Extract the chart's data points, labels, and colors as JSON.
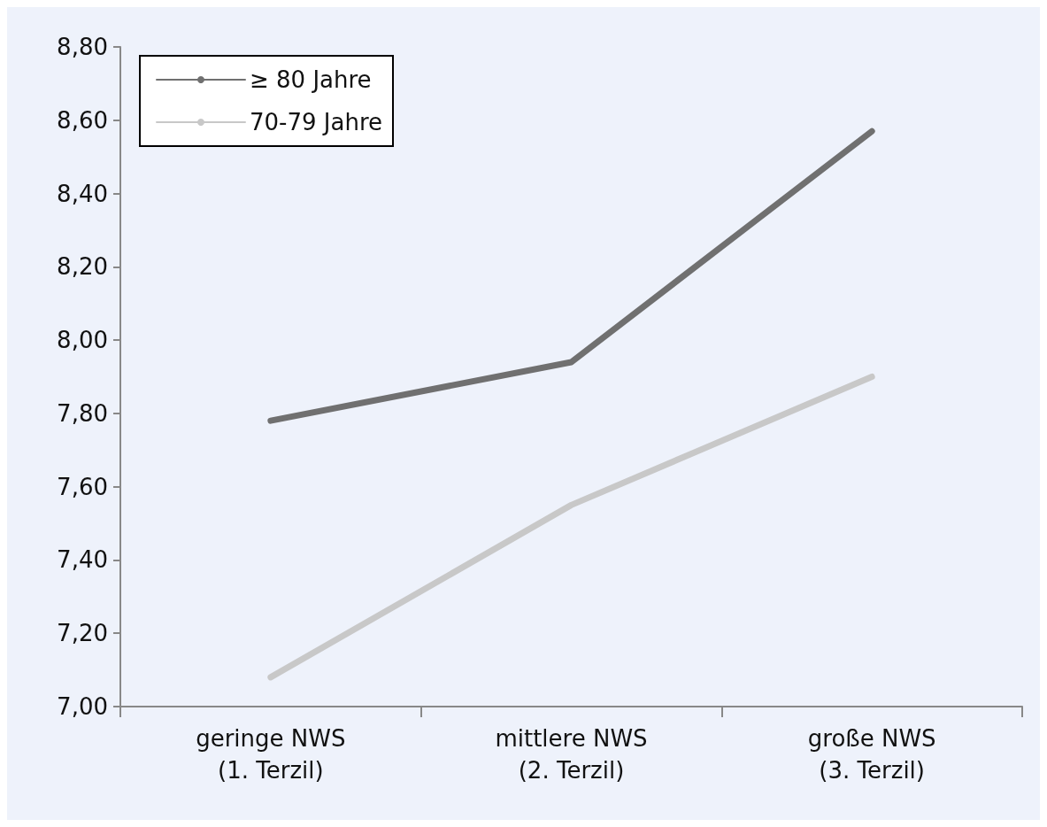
{
  "chart_data": {
    "type": "line",
    "categories": [
      "geringe NWS\n(1. Terzil)",
      "mittlere NWS\n(2. Terzil)",
      "große NWS\n(3. Terzil)"
    ],
    "series": [
      {
        "name": "≥ 80 Jahre",
        "color": "#707070",
        "values": [
          7.78,
          7.94,
          8.57
        ]
      },
      {
        "name": "70-79 Jahre",
        "color": "#c8c8c8",
        "values": [
          7.08,
          7.55,
          7.9
        ]
      }
    ],
    "ylim": [
      7.0,
      8.8
    ],
    "yticks": [
      {
        "value": 7.0,
        "label": "7,00"
      },
      {
        "value": 7.2,
        "label": "7,20"
      },
      {
        "value": 7.4,
        "label": "7,40"
      },
      {
        "value": 7.6,
        "label": "7,60"
      },
      {
        "value": 7.8,
        "label": "7,80"
      },
      {
        "value": 8.0,
        "label": "8,00"
      },
      {
        "value": 8.2,
        "label": "8,20"
      },
      {
        "value": 8.4,
        "label": "8,40"
      },
      {
        "value": 8.6,
        "label": "8,60"
      },
      {
        "value": 8.8,
        "label": "8,80"
      }
    ],
    "grid": false,
    "legend": "top left",
    "marker": "none",
    "line_style": "solid"
  }
}
